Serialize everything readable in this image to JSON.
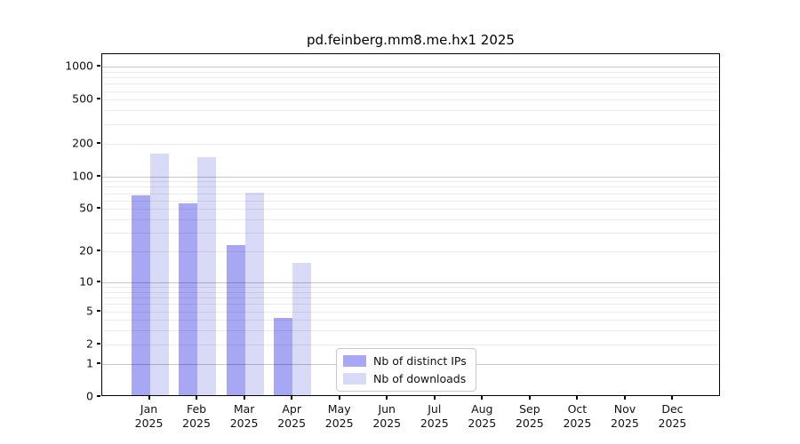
{
  "title": "pd.feinberg.mm8.me.hx1 2025",
  "colors": {
    "distinct_ips": "#a7a7f3",
    "downloads": "#d9d9f8",
    "spine": "#000000",
    "major_grid": "#c8c8c8",
    "minor_grid": "#ededed"
  },
  "legend": {
    "items": [
      {
        "label": "Nb of distinct IPs",
        "color": "#a7a7f3"
      },
      {
        "label": "Nb of downloads",
        "color": "#d9d9f8"
      }
    ]
  },
  "chart_data": {
    "type": "bar",
    "title": "pd.feinberg.mm8.me.hx1 2025",
    "categories": [
      "Jan 2025",
      "Feb 2025",
      "Mar 2025",
      "Apr 2025",
      "May 2025",
      "Jun 2025",
      "Jul 2025",
      "Aug 2025",
      "Sep 2025",
      "Oct 2025",
      "Nov 2025",
      "Dec 2025"
    ],
    "x_months": [
      "Jan",
      "Feb",
      "Mar",
      "Apr",
      "May",
      "Jun",
      "Jul",
      "Aug",
      "Sep",
      "Oct",
      "Nov",
      "Dec"
    ],
    "x_year": "2025",
    "series": [
      {
        "name": "Nb of distinct IPs",
        "color": "#a7a7f3",
        "values": [
          64,
          54,
          22,
          4,
          0,
          0,
          0,
          0,
          0,
          0,
          0,
          0
        ]
      },
      {
        "name": "Nb of downloads",
        "color": "#d9d9f8",
        "values": [
          155,
          143,
          68,
          15,
          0,
          0,
          0,
          0,
          0,
          0,
          0,
          0
        ]
      }
    ],
    "xlabel": "",
    "ylabel": "",
    "y_scale": "log1p",
    "y_ticks": [
      0,
      1,
      2,
      5,
      10,
      20,
      50,
      100,
      200,
      500,
      1000
    ],
    "ylim": [
      0,
      1300
    ],
    "grid": "on",
    "legend_position": "inside lower center"
  }
}
